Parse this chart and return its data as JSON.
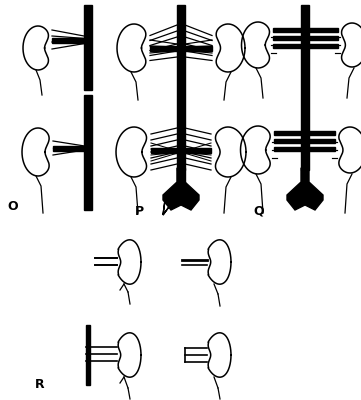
{
  "bg_color": "#ffffff",
  "line_color": "#000000",
  "label_O": "O",
  "label_P": "P",
  "label_Q": "Q",
  "label_R": "R",
  "label_fontsize": 9,
  "fig_width": 3.61,
  "fig_height": 4.0,
  "dpi": 100
}
